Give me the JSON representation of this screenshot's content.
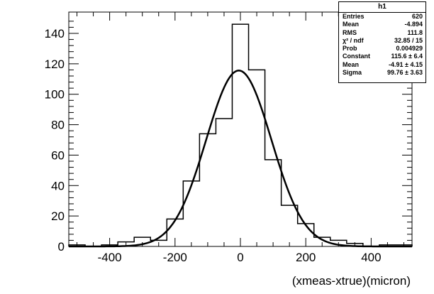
{
  "chart_data": {
    "type": "bar",
    "style": "step-histogram",
    "xlabel": "(xmeas-xtrue)(micron)",
    "ylabel": "",
    "xlim": [
      -525,
      525
    ],
    "ylim": [
      0,
      154
    ],
    "xticks": [
      -400,
      -200,
      0,
      200,
      400
    ],
    "yticks": [
      0,
      20,
      40,
      60,
      80,
      100,
      120,
      140
    ],
    "bin_width": 50,
    "bin_edges": [
      -525,
      -475,
      -425,
      -375,
      -325,
      -275,
      -225,
      -175,
      -125,
      -75,
      -25,
      25,
      75,
      125,
      175,
      225,
      275,
      325,
      375,
      425,
      475,
      525
    ],
    "values": [
      1,
      0,
      1,
      3,
      6,
      4,
      18,
      43,
      74,
      84,
      146,
      116,
      57,
      27,
      15,
      6,
      4,
      2,
      0,
      1,
      1
    ],
    "fit": {
      "function": "gaus",
      "constant": 115.6,
      "mean": -4.91,
      "sigma": 99.76
    },
    "grid": false,
    "legend": "top-right"
  },
  "stats_box": {
    "title": "h1",
    "rows": [
      {
        "label": "Entries",
        "value": "620"
      },
      {
        "label": "Mean",
        "value": "-4.894"
      },
      {
        "label": "RMS",
        "value": "111.8"
      },
      {
        "label": "χ² / ndf",
        "value": "32.85 / 15"
      },
      {
        "label": "Prob",
        "value": "0.004929"
      },
      {
        "label": "Constant",
        "value": "115.6 ± 6.4"
      },
      {
        "label": "Mean",
        "value": "-4.91 ± 4.15"
      },
      {
        "label": "Sigma",
        "value": "99.76 ± 3.63"
      }
    ]
  }
}
